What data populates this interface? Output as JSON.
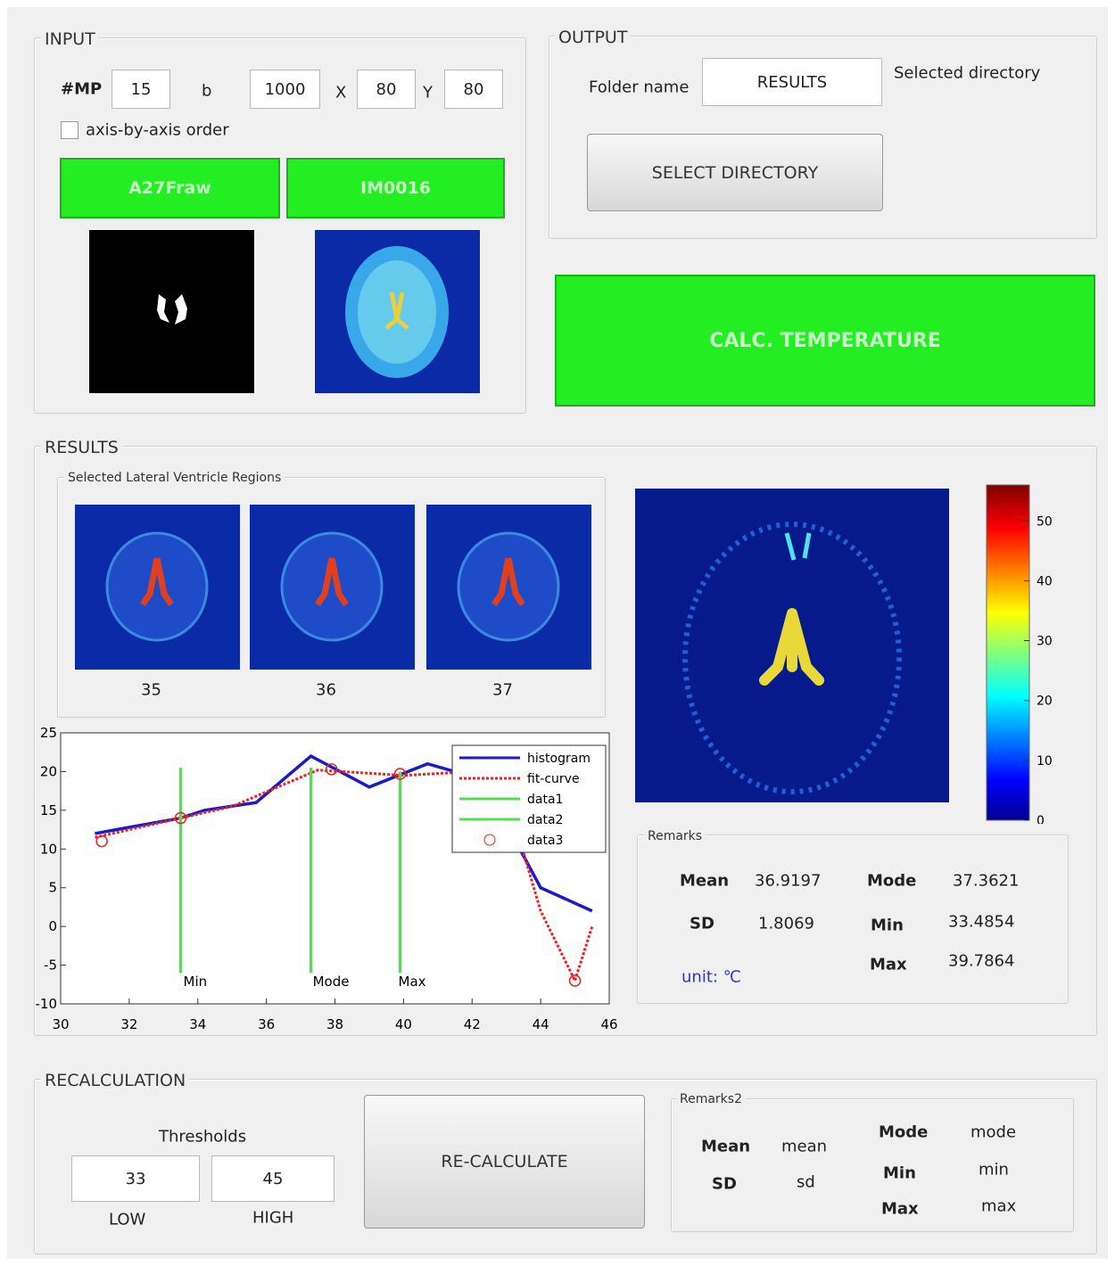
{
  "input": {
    "title": "INPUT",
    "mp_label": "#MP",
    "mp": 15,
    "b_label": "b",
    "b": 1000,
    "x_label": "X",
    "x": 80,
    "y_label": "Y",
    "y": 80,
    "checkbox": "axis-by-axis order",
    "button1": "A27Fraw",
    "button2": "IM0016"
  },
  "output": {
    "title": "OUTPUT",
    "folder_label": "Folder name",
    "folder": "RESULTS",
    "selected_directory": "Selected directory",
    "select_button": "SELECT DIRECTORY"
  },
  "calc_button": "CALC. TEMPERATURE",
  "results": {
    "title": "RESULTS",
    "regions_title": "Selected Lateral Ventricle Regions",
    "slices": [
      35,
      36,
      37
    ],
    "colorbar": {
      "lim": [
        0,
        56
      ],
      "ticks": [
        0,
        10,
        20,
        30,
        40,
        50
      ]
    },
    "remarks": {
      "title": "Remarks",
      "mean_label": "Mean",
      "mean": 36.9197,
      "sd_label": "SD",
      "sd": 1.8069,
      "unit": "unit: ℃",
      "mode_label": "Mode",
      "mode": 37.3621,
      "min_label": "Min",
      "min": 33.4854,
      "max_label": "Max",
      "max": 39.7864
    }
  },
  "chart_data": {
    "type": "line",
    "xlim": [
      30,
      46
    ],
    "xticks": [
      30,
      32,
      34,
      36,
      38,
      40,
      42,
      44,
      46
    ],
    "ylim": [
      -10,
      25
    ],
    "yticks": [
      -10,
      -5,
      0,
      5,
      10,
      15,
      20,
      25
    ],
    "legend": "northeast",
    "annotations": [
      "Min",
      "Mode",
      "Max"
    ],
    "series": [
      {
        "name": "histogram",
        "color": "#1a1acc",
        "style": "solid",
        "x": [
          31,
          33.5,
          34.2,
          35.7,
          37.3,
          39,
          40.7,
          42.3,
          44,
          45.5
        ],
        "values": [
          12,
          14,
          15,
          16,
          22,
          18,
          21,
          19,
          5,
          2
        ]
      },
      {
        "name": "fit-curve",
        "color": "#ee2222",
        "style": "dotted",
        "x": [
          31,
          33.5,
          35,
          37.5,
          40,
          42,
          43,
          44,
          45,
          45.5
        ],
        "values": [
          11.5,
          14,
          15.5,
          20.2,
          19.5,
          20,
          17,
          2,
          -7,
          0
        ]
      },
      {
        "name": "data1",
        "color": "#55dd55",
        "style": "solid",
        "x": [
          33.5,
          33.5,
          null,
          37.3,
          37.3
        ],
        "values": [
          20.5,
          -6,
          null,
          20.5,
          -6
        ]
      },
      {
        "name": "data2",
        "color": "#55dd55",
        "style": "solid",
        "x": [
          39.9,
          39.9
        ],
        "values": [
          20,
          -6
        ]
      },
      {
        "name": "data3",
        "color": "#ee2222",
        "style": "marker",
        "x": [
          31.2,
          33.5,
          37.9,
          39.9,
          45
        ],
        "values": [
          11,
          14,
          20.3,
          19.7,
          -7
        ]
      }
    ]
  },
  "recalculation": {
    "title": "RECALCULATION",
    "thresholds": "Thresholds",
    "low": 33,
    "high": 45,
    "low_label": "LOW",
    "high_label": "HIGH",
    "button": "RE-CALCULATE",
    "remarks2": {
      "title": "Remarks2",
      "mean_label": "Mean",
      "mean": "mean",
      "sd_label": "SD",
      "sd": "sd",
      "mode_label": "Mode",
      "mode": "mode",
      "min_label": "Min",
      "min": "min",
      "max_label": "Max",
      "max": "max"
    }
  }
}
